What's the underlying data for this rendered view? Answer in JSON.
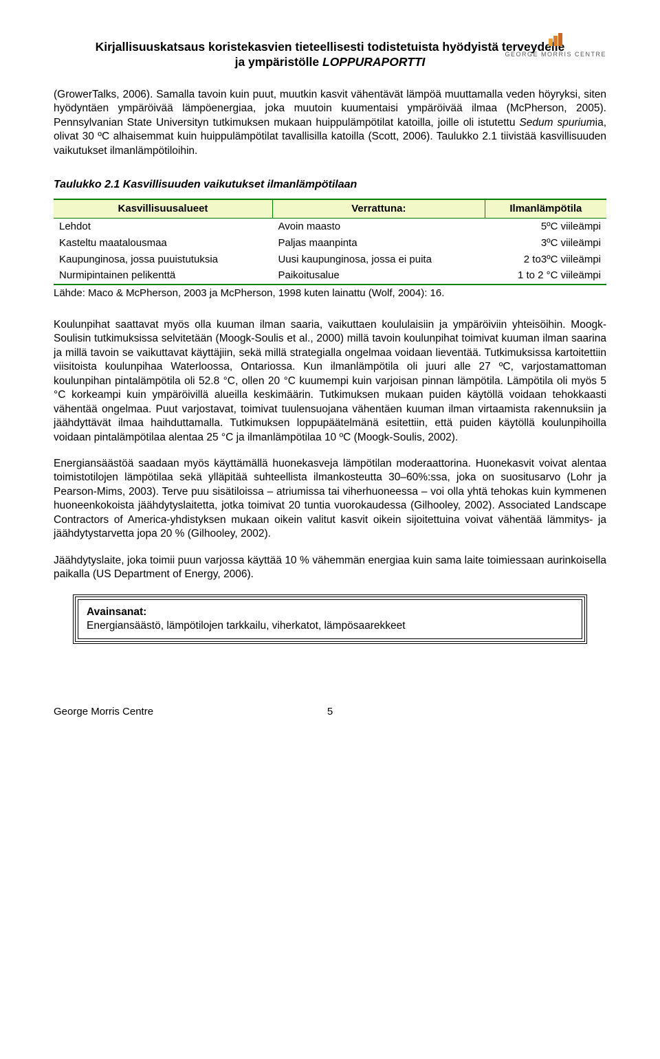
{
  "header": {
    "line1": "Kirjallisuuskatsaus koristekasvien tieteellisesti todistetuista hyödyistä terveydelle",
    "line2_plain": "ja ympäristölle ",
    "line2_italic": "LOPPURAPORTTI"
  },
  "logo": {
    "text": "GEORGE MORRIS CENTRE"
  },
  "paragraphs": {
    "p1a": "(GrowerTalks, 2006). Samalla tavoin kuin puut, muutkin kasvit vähentävät lämpöä muuttamalla veden höyryksi, siten hyödyntäen ympäröivää lämpöenergiaa, joka muutoin kuumentaisi ympäröivää ilmaa (McPherson, 2005). Pennsylvanian State Universityn tutkimuksen mukaan huippulämpötilat katoilla, joille oli istutettu ",
    "p1b_i": "Sedum spurium",
    "p1c": "ia, olivat 30 ºC alhaisemmat kuin huippulämpötilat tavallisilla katoilla (Scott, 2006). Taulukko 2.1 tiivistää kasvillisuuden vaikutukset ilmanlämpötiloihin.",
    "table_title": "Taulukko 2.1 Kasvillisuuden vaikutukset ilmanlämpötilaan",
    "source": "Lähde: Maco & McPherson, 2003 ja McPherson, 1998 kuten lainattu (Wolf, 2004): 16.",
    "p2": "Koulunpihat saattavat myös olla kuuman ilman saaria, vaikuttaen koululaisiin ja ympäröiviin yhteisöihin. Moogk-Soulisin tutkimuksissa selvitetään (Moogk-Soulis et al., 2000) millä tavoin koulunpihat toimivat kuuman ilman saarina ja millä tavoin se vaikuttavat käyttäjiin, sekä millä strategialla ongelmaa voidaan lieventää. Tutkimuksissa kartoitettiin viisitoista koulunpihaa Waterloossa, Ontariossa. Kun ilmanlämpötila oli juuri alle 27 ºC, varjostamattoman koulunpihan pintalämpötila oli 52.8 °C, ollen 20 °C kuumempi kuin varjoisan pinnan lämpötila. Lämpötila oli myös 5 °C korkeampi kuin ympäröivillä alueilla keskimäärin. Tutkimuksen mukaan puiden käytöllä voidaan tehokkaasti vähentää ongelmaa. Puut varjostavat, toimivat tuulensuojana vähentäen kuuman ilman virtaamista rakennuksiin ja jäähdyttävät ilmaa haihduttamalla. Tutkimuksen loppupäätelmänä esitettiin, että puiden käytöllä koulunpihoilla voidaan pintalämpötilaa alentaa 25 °C ja ilmanlämpötilaa 10 ºC (Moogk-Soulis, 2002).",
    "p3": "Energiansäästöä saadaan myös käyttämällä huonekasveja lämpötilan moderaattorina. Huonekasvit voivat alentaa toimistotilojen lämpötilaa sekä ylläpitää suhteellista ilmankosteutta 30–60%:ssa, joka on suositusarvo (Lohr ja Pearson-Mims, 2003). Terve puu sisätiloissa – atriumissa tai viherhuoneessa – voi olla yhtä tehokas kuin kymmenen huoneenkokoista jäähdytyslaitetta, jotka toimivat 20 tuntia vuorokaudessa (Gilhooley, 2002). Associated Landscape Contractors of America-yhdistyksen mukaan oikein valitut kasvit oikein sijoitettuina voivat vähentää lämmitys- ja jäähdytystarvetta jopa 20 % (Gilhooley, 2002).",
    "p4": "Jäähdytyslaite, joka toimii puun varjossa käyttää 10 % vähemmän energiaa kuin sama laite toimiessaan aurinkoisella paikalla (US Department of Energy, 2006)."
  },
  "table": {
    "header_bg": "#f3f8c9",
    "border_color": "#008000",
    "columns": [
      "Kasvillisuusalueet",
      "Verrattuna:",
      "Ilmanlämpötila"
    ],
    "rows": [
      [
        "Lehdot",
        "Avoin maasto",
        "5ºC viileämpi"
      ],
      [
        "Kasteltu maatalousmaa",
        "Paljas maanpinta",
        "3ºC viileämpi"
      ],
      [
        "Kaupunginosa, jossa puuistutuksia",
        "Uusi kaupunginosa, jossa ei puita",
        "2 to3ºC viileämpi"
      ],
      [
        "Nurmipintainen pelikenttä",
        "Paikoitusalue",
        "1 to 2 °C viileämpi"
      ]
    ]
  },
  "keybox": {
    "title": "Avainsanat:",
    "body": "Energiansäästö, lämpötilojen tarkkailu, viherkatot, lämpösaarekkeet"
  },
  "footer": {
    "left": "George Morris Centre",
    "page": "5"
  }
}
